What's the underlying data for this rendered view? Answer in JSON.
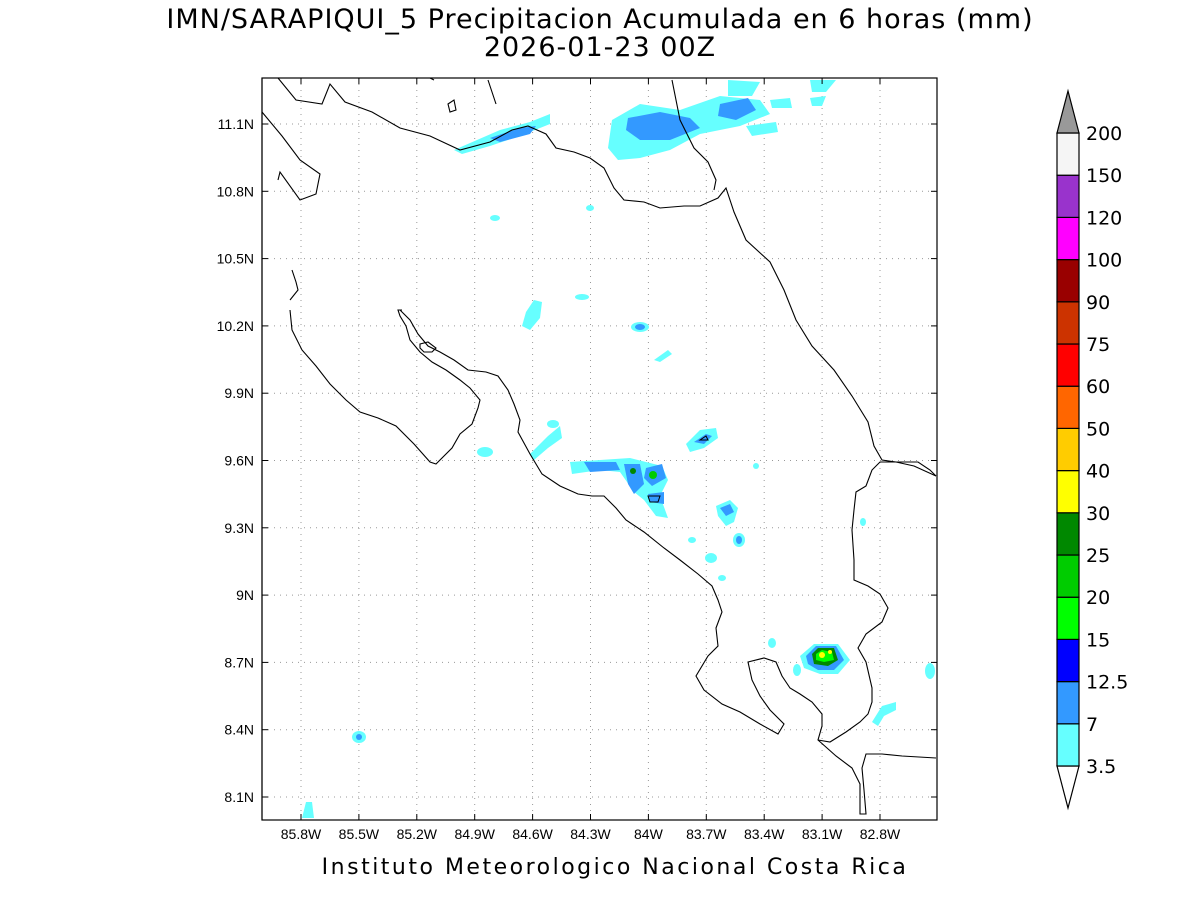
{
  "title_line1": "IMN/SARAPIQUI_5 Precipitacion Acumulada en 6 horas (mm)",
  "title_line2": "2026-01-23 00Z",
  "footer": "Instituto Meteorologico Nacional Costa Rica",
  "map": {
    "lon_range": [
      -86.0,
      -83.0
    ],
    "lat_range": [
      8.0,
      11.3
    ],
    "lon_ticks": [
      {
        "value": -85.8,
        "label": "85.8W"
      },
      {
        "value": -85.5,
        "label": "85.5W"
      },
      {
        "value": -85.2,
        "label": "85.2W"
      },
      {
        "value": -84.9,
        "label": "84.9W"
      },
      {
        "value": -84.6,
        "label": "84.6W"
      },
      {
        "value": -84.3,
        "label": "84.3W"
      },
      {
        "value": -84.0,
        "label": "84W"
      },
      {
        "value": -83.7,
        "label": "83.7W"
      },
      {
        "value": -83.4,
        "label": "83.4W"
      },
      {
        "value": -83.1,
        "label": "83.1W"
      },
      {
        "value": -82.8,
        "label": "82.8W"
      }
    ],
    "lat_ticks": [
      {
        "value": 11.1,
        "label": "11.1N"
      },
      {
        "value": 10.8,
        "label": "10.8N"
      },
      {
        "value": 10.5,
        "label": "10.5N"
      },
      {
        "value": 10.2,
        "label": "10.2N"
      },
      {
        "value": 9.9,
        "label": "9.9N"
      },
      {
        "value": 9.6,
        "label": "9.6N"
      },
      {
        "value": 9.3,
        "label": "9.3N"
      },
      {
        "value": 9.0,
        "label": "9N"
      },
      {
        "value": 8.7,
        "label": "8.7N"
      },
      {
        "value": 8.4,
        "label": "8.4N"
      },
      {
        "value": 8.1,
        "label": "8.1N"
      }
    ],
    "grid": "dotted"
  },
  "colorbar": {
    "levels": [
      {
        "label": "3.5",
        "color": "#66ffff"
      },
      {
        "label": "7",
        "color": "#3399ff"
      },
      {
        "label": "12.5",
        "color": "#0000ff"
      },
      {
        "label": "15",
        "color": "#00ff00"
      },
      {
        "label": "20",
        "color": "#00cc00"
      },
      {
        "label": "25",
        "color": "#008800"
      },
      {
        "label": "30",
        "color": "#ffff00"
      },
      {
        "label": "40",
        "color": "#ffcc00"
      },
      {
        "label": "50",
        "color": "#ff6600"
      },
      {
        "label": "60",
        "color": "#ff0000"
      },
      {
        "label": "75",
        "color": "#cc3300"
      },
      {
        "label": "90",
        "color": "#990000"
      },
      {
        "label": "100",
        "color": "#ff00ff"
      },
      {
        "label": "120",
        "color": "#9933cc"
      },
      {
        "label": "150",
        "color": "#f5f5f5"
      },
      {
        "label": "200",
        "color": "#999999"
      }
    ]
  }
}
